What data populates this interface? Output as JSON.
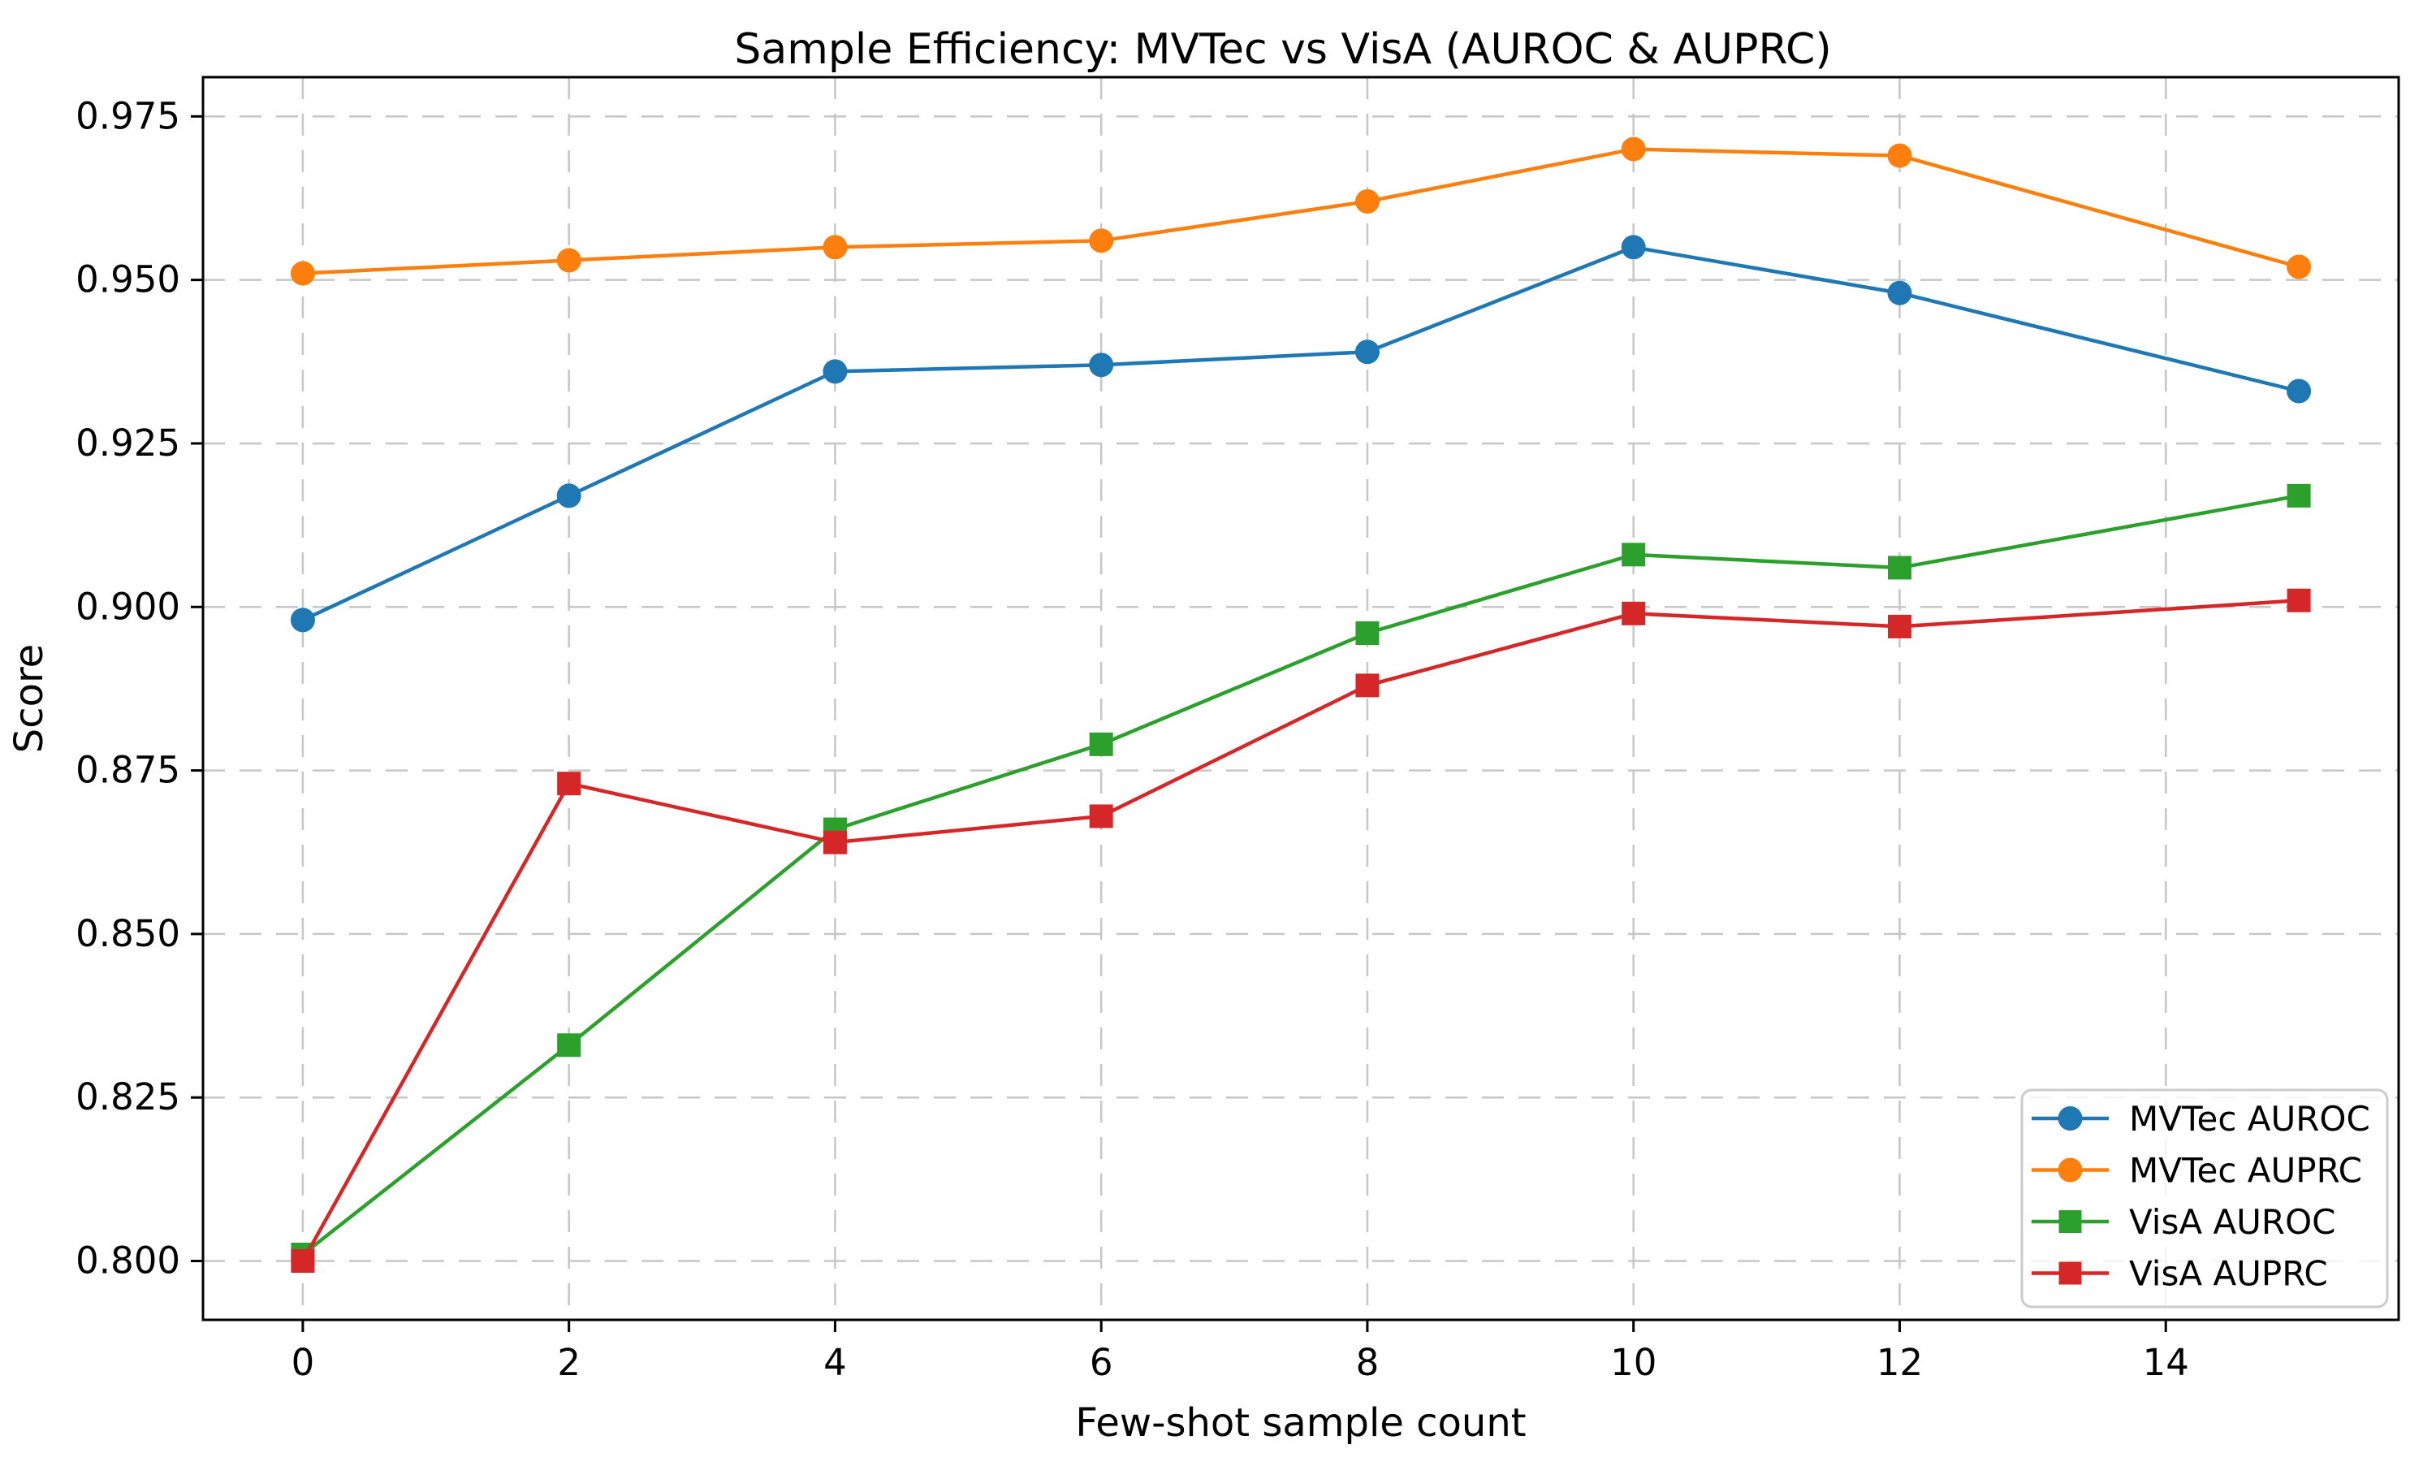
{
  "figure": {
    "background": "#ffffff",
    "spine_color": "#000000",
    "grid_color": "#c6c6c6",
    "tick_color": "#000000"
  },
  "chart_data": {
    "type": "line",
    "title": "Sample Efficiency: MVTec vs VisA (AUROC & AUPRC)",
    "xlabel": "Few-shot sample count",
    "ylabel": "Score",
    "x": [
      0,
      2,
      4,
      6,
      8,
      10,
      12,
      15
    ],
    "series": [
      {
        "name": "MVTec AUROC",
        "color": "#1f77b4",
        "marker": "circle",
        "values": [
          0.898,
          0.917,
          0.936,
          0.937,
          0.939,
          0.955,
          0.948,
          0.933
        ]
      },
      {
        "name": "MVTec AUPRC",
        "color": "#ff7f0e",
        "marker": "circle",
        "values": [
          0.951,
          0.953,
          0.955,
          0.956,
          0.962,
          0.97,
          0.969,
          0.952
        ]
      },
      {
        "name": "VisA AUROC",
        "color": "#2ca02c",
        "marker": "square",
        "values": [
          0.801,
          0.833,
          0.866,
          0.879,
          0.896,
          0.908,
          0.906,
          0.917
        ]
      },
      {
        "name": "VisA AUPRC",
        "color": "#d62728",
        "marker": "square",
        "values": [
          0.8,
          0.873,
          0.864,
          0.868,
          0.888,
          0.899,
          0.897,
          0.901
        ]
      }
    ],
    "xticks": [
      0,
      2,
      4,
      6,
      8,
      10,
      12,
      14
    ],
    "ytick_labels": [
      "0.800",
      "0.825",
      "0.850",
      "0.875",
      "0.900",
      "0.925",
      "0.950",
      "0.975"
    ],
    "xlim": [
      -0.75,
      15.75
    ],
    "ylim": [
      0.791,
      0.981
    ],
    "grid": true,
    "grid_style": "dashed",
    "legend_position": "lower right"
  }
}
